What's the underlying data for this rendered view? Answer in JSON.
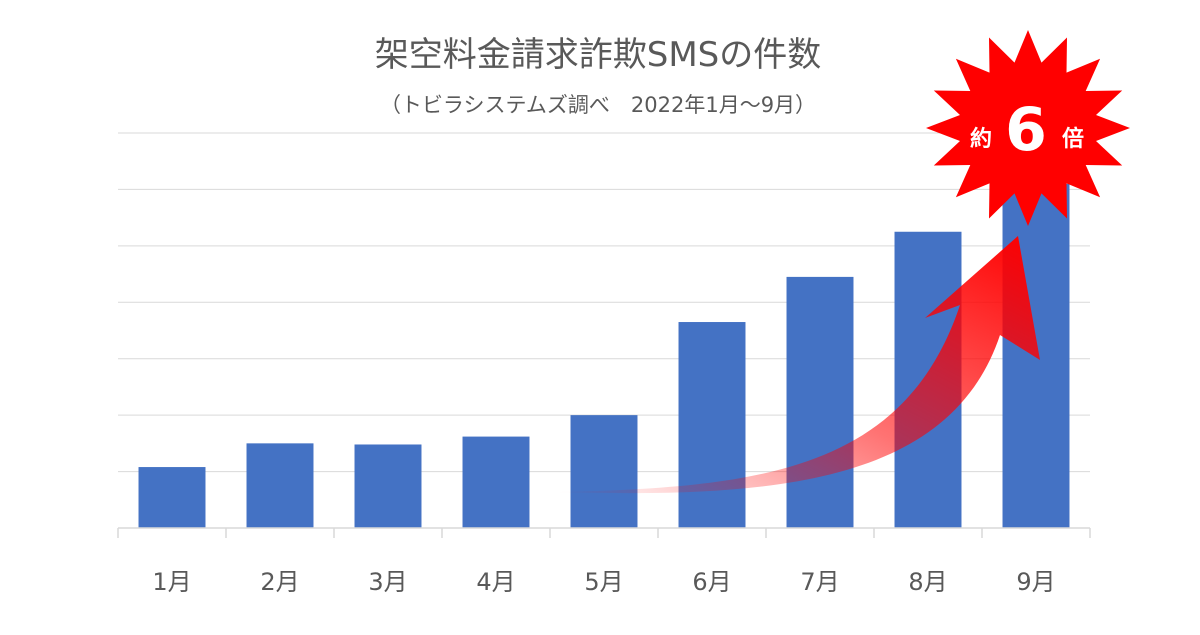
{
  "chart_data": {
    "type": "bar",
    "title": "架空料金請求詐欺SMSの件数",
    "subtitle": "（トビラシステムズ調べ　2022年1月〜9月）",
    "categories": [
      "1月",
      "2月",
      "3月",
      "4月",
      "5月",
      "6月",
      "7月",
      "8月",
      "9月"
    ],
    "values": [
      1.08,
      1.5,
      1.48,
      1.62,
      2.0,
      3.65,
      4.45,
      5.25,
      6.1
    ],
    "ylim": [
      0,
      7
    ],
    "y_gridlines": 7,
    "y_tick_labels_visible": false,
    "bar_color": "#4472c4",
    "annotation": {
      "prefix": "約",
      "number": "6",
      "suffix": "倍",
      "burst_color": "#ff0000",
      "arrow_color": "#ff0000"
    }
  }
}
